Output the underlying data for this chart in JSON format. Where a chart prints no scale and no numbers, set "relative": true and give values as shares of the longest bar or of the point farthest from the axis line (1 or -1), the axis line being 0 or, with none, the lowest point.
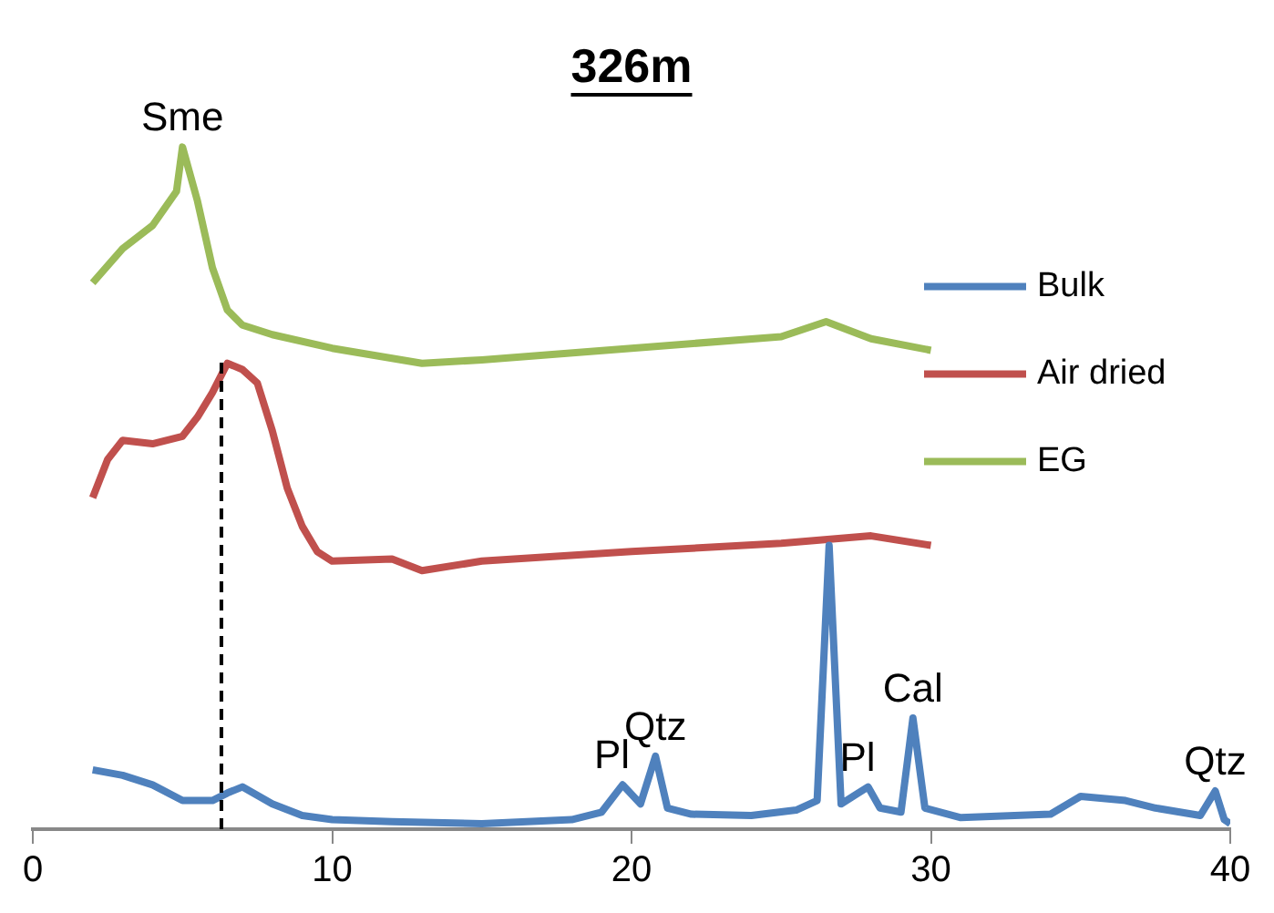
{
  "chart_data": {
    "type": "line",
    "title": "326m",
    "relative": true,
    "xlim": [
      0,
      40
    ],
    "xticks": [
      0,
      10,
      20,
      30,
      40
    ],
    "legend": "right",
    "grid": false,
    "marker": "none",
    "line_style": "solid",
    "series": [
      {
        "name": "Bulk",
        "color": "#4f81bd",
        "x": [
          2,
          3,
          4,
          5,
          6,
          6.5,
          7,
          8,
          9,
          10,
          12,
          15,
          18,
          19,
          19.7,
          20.3,
          20.8,
          21.2,
          22,
          24,
          25.5,
          26.2,
          26.6,
          27,
          27.5,
          27.9,
          28.3,
          29,
          29.4,
          29.8,
          31,
          34,
          35,
          36.5,
          37.5,
          39,
          39.5,
          39.8,
          40
        ],
        "values": [
          0.087,
          0.079,
          0.065,
          0.042,
          0.042,
          0.053,
          0.062,
          0.037,
          0.02,
          0.014,
          0.011,
          0.008,
          0.014,
          0.025,
          0.065,
          0.037,
          0.107,
          0.031,
          0.022,
          0.02,
          0.028,
          0.042,
          0.416,
          0.037,
          0.051,
          0.062,
          0.031,
          0.025,
          0.163,
          0.031,
          0.017,
          0.022,
          0.048,
          0.042,
          0.031,
          0.02,
          0.056,
          0.014,
          0.008
        ]
      },
      {
        "name": "Air dried",
        "color": "#c0504d",
        "x": [
          2,
          2.5,
          3,
          4,
          5,
          5.5,
          6,
          6.5,
          7,
          7.5,
          8,
          8.5,
          9,
          9.5,
          10,
          12,
          13,
          15,
          20,
          25,
          28,
          30
        ],
        "values": [
          0.486,
          0.542,
          0.57,
          0.565,
          0.576,
          0.604,
          0.64,
          0.683,
          0.674,
          0.654,
          0.584,
          0.5,
          0.444,
          0.407,
          0.393,
          0.396,
          0.379,
          0.393,
          0.407,
          0.419,
          0.43,
          0.416
        ]
      },
      {
        "name": "EG",
        "color": "#9bbb59",
        "x": [
          2,
          3,
          4,
          4.8,
          5,
          5.5,
          6,
          6.5,
          7,
          8,
          10,
          13,
          15,
          20,
          25,
          26.5,
          28,
          30
        ],
        "values": [
          0.801,
          0.851,
          0.885,
          0.935,
          1,
          0.921,
          0.823,
          0.761,
          0.739,
          0.725,
          0.705,
          0.683,
          0.688,
          0.705,
          0.722,
          0.744,
          0.719,
          0.702
        ]
      }
    ],
    "ref_lines": [
      {
        "axis": "x",
        "value": 6.3,
        "line_style": "dashed",
        "color": "#000000"
      }
    ],
    "annotations": [
      {
        "text": "Sme",
        "x": 5,
        "y": 1
      },
      {
        "text": "Pl",
        "x": 19.7,
        "y": 0.065
      },
      {
        "text": "Qtz",
        "x": 20.8,
        "y": 0.107
      },
      {
        "text": "Pl",
        "x": 27.9,
        "y": 0.062
      },
      {
        "text": "Cal",
        "x": 29.4,
        "y": 0.163
      },
      {
        "text": "Qtz",
        "x": 39.5,
        "y": 0.056
      }
    ]
  }
}
